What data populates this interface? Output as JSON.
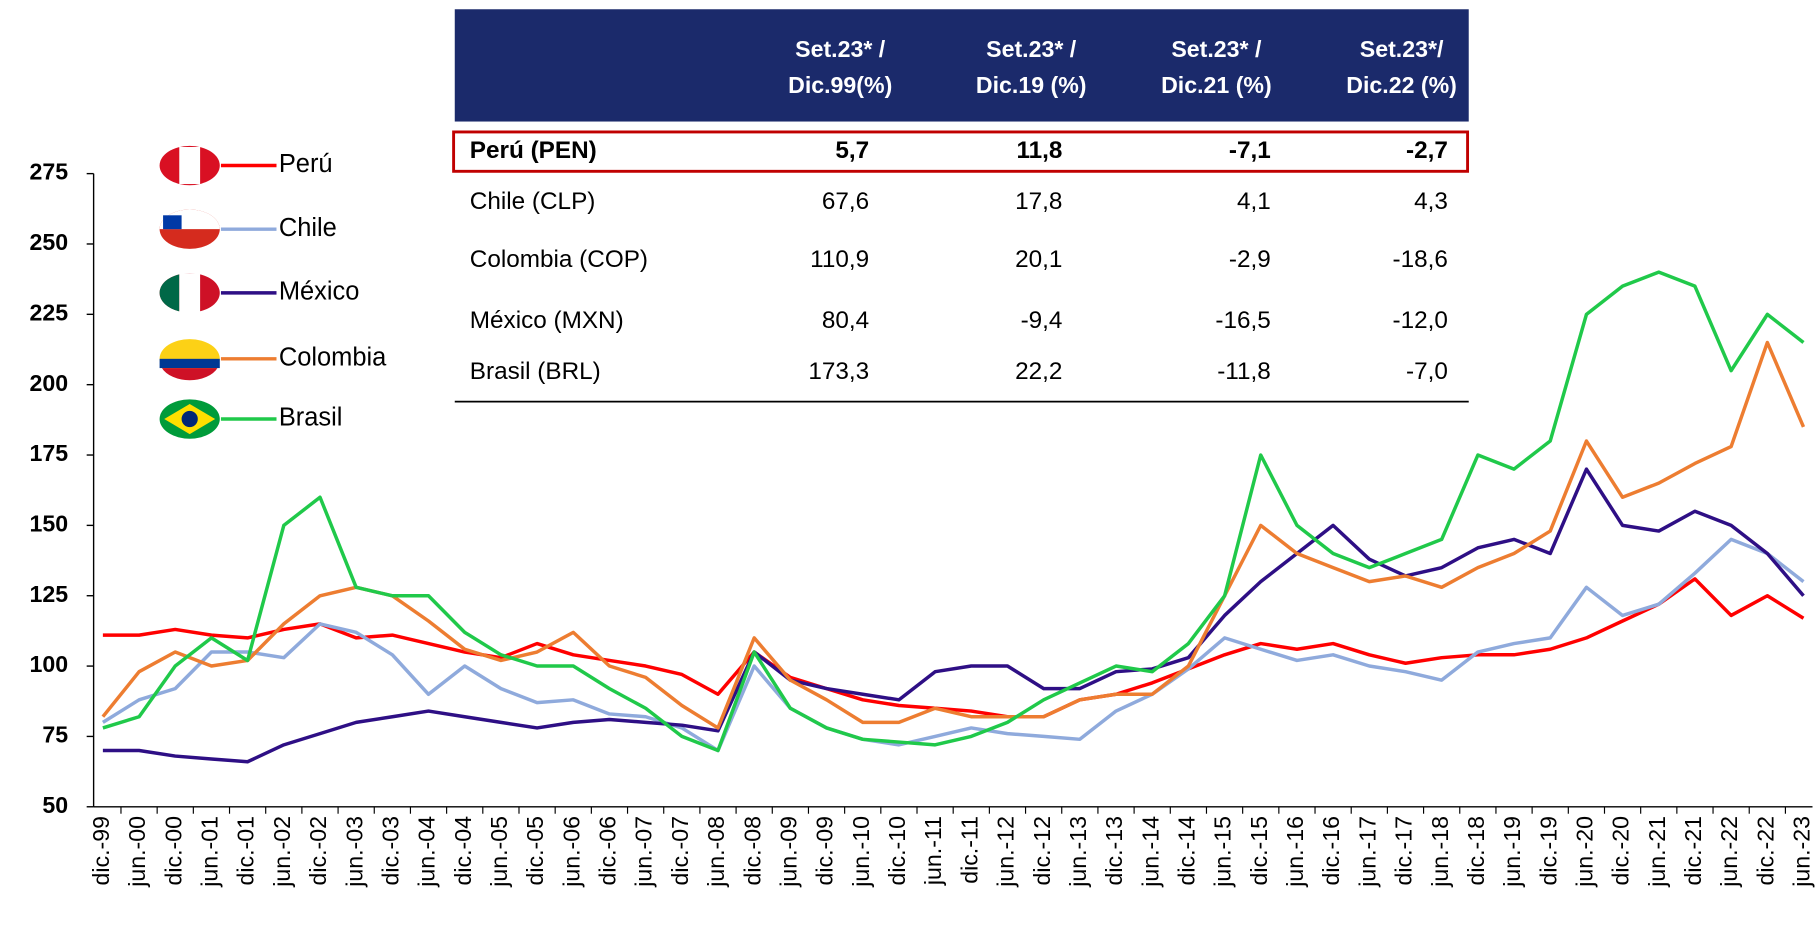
{
  "chart_data": {
    "type": "line",
    "categories": [
      "dic.-99",
      "jun.-00",
      "dic.-00",
      "jun.-01",
      "dic.-01",
      "jun.-02",
      "dic.-02",
      "jun.-03",
      "dic.-03",
      "jun.-04",
      "dic.-04",
      "jun.-05",
      "dic.-05",
      "jun.-06",
      "dic.-06",
      "jun.-07",
      "dic.-07",
      "jun.-08",
      "dic.-08",
      "jun.-09",
      "dic.-09",
      "jun.-10",
      "dic.-10",
      "jun.-11",
      "dic.-11",
      "jun.-12",
      "dic.-12",
      "jun.-13",
      "dic.-13",
      "jun.-14",
      "dic.-14",
      "jun.-15",
      "dic.-15",
      "jun.-16",
      "dic.-16",
      "jun.-17",
      "dic.-17",
      "jun.-18",
      "dic.-18",
      "jun.-19",
      "dic.-19",
      "jun.-20",
      "dic.-20",
      "jun.-21",
      "dic.-21",
      "jun.-22",
      "dic.-22",
      "jun.-23"
    ],
    "series": [
      {
        "name": "Perú",
        "color": "#ff0000",
        "values": [
          111,
          111,
          113,
          111,
          110,
          113,
          115,
          110,
          111,
          108,
          105,
          103,
          108,
          104,
          102,
          100,
          97,
          90,
          105,
          96,
          92,
          88,
          86,
          85,
          84,
          82,
          82,
          88,
          90,
          94,
          99,
          104,
          108,
          106,
          108,
          104,
          101,
          103,
          104,
          104,
          106,
          110,
          116,
          122,
          131,
          118,
          125,
          117
        ]
      },
      {
        "name": "Chile",
        "color": "#8faadc",
        "values": [
          80,
          88,
          92,
          105,
          105,
          103,
          115,
          112,
          104,
          90,
          100,
          92,
          87,
          88,
          83,
          82,
          78,
          70,
          100,
          85,
          78,
          74,
          72,
          75,
          78,
          76,
          75,
          74,
          84,
          90,
          99,
          110,
          106,
          102,
          104,
          100,
          98,
          95,
          105,
          108,
          110,
          128,
          118,
          122,
          133,
          145,
          140,
          130
        ]
      },
      {
        "name": "México",
        "color": "#2e0f85",
        "values": [
          70,
          70,
          68,
          67,
          66,
          72,
          76,
          80,
          82,
          84,
          82,
          80,
          78,
          80,
          81,
          80,
          79,
          77,
          105,
          95,
          92,
          90,
          88,
          98,
          100,
          100,
          92,
          92,
          98,
          99,
          103,
          118,
          130,
          140,
          150,
          138,
          132,
          135,
          142,
          145,
          140,
          170,
          150,
          148,
          155,
          150,
          140,
          125
        ]
      },
      {
        "name": "Colombia",
        "color": "#ed7d31",
        "values": [
          82,
          98,
          105,
          100,
          102,
          115,
          125,
          128,
          125,
          116,
          106,
          102,
          105,
          112,
          100,
          96,
          86,
          78,
          110,
          95,
          88,
          80,
          80,
          85,
          82,
          82,
          82,
          88,
          90,
          90,
          100,
          125,
          150,
          140,
          135,
          130,
          132,
          128,
          135,
          140,
          148,
          180,
          160,
          165,
          172,
          178,
          215,
          185
        ]
      },
      {
        "name": "Brasil",
        "color": "#20c94a",
        "values": [
          78,
          82,
          100,
          110,
          102,
          150,
          160,
          128,
          125,
          125,
          112,
          104,
          100,
          100,
          92,
          85,
          75,
          70,
          105,
          85,
          78,
          74,
          73,
          72,
          75,
          80,
          88,
          94,
          100,
          98,
          108,
          125,
          175,
          150,
          140,
          135,
          140,
          145,
          175,
          170,
          180,
          225,
          235,
          240,
          235,
          205,
          225,
          215
        ]
      }
    ],
    "ylim": [
      50,
      275
    ],
    "yticks": [
      50,
      75,
      100,
      125,
      150,
      175,
      200,
      225,
      250,
      275
    ],
    "grid": false
  },
  "table": {
    "header": [
      [
        "Set.23* /",
        "Dic.99(%)"
      ],
      [
        "Set.23* /",
        "Dic.19 (%)"
      ],
      [
        "Set.23* /",
        "Dic.21 (%)"
      ],
      [
        "Set.23*/",
        "Dic.22 (%)"
      ]
    ],
    "rows": [
      [
        "Perú (PEN)",
        "5,7",
        "11,8",
        "-7,1",
        "-2,7"
      ],
      [
        "Chile (CLP)",
        "67,6",
        "17,8",
        "4,1",
        "4,3"
      ],
      [
        "Colombia (COP)",
        "110,9",
        "20,1",
        "-2,9",
        "-18,6"
      ],
      [
        "México (MXN)",
        "80,4",
        "-9,4",
        "-16,5",
        "-12,0"
      ],
      [
        "Brasil (BRL)",
        "173,3",
        "22,2",
        "-11,8",
        "-7,0"
      ]
    ]
  }
}
